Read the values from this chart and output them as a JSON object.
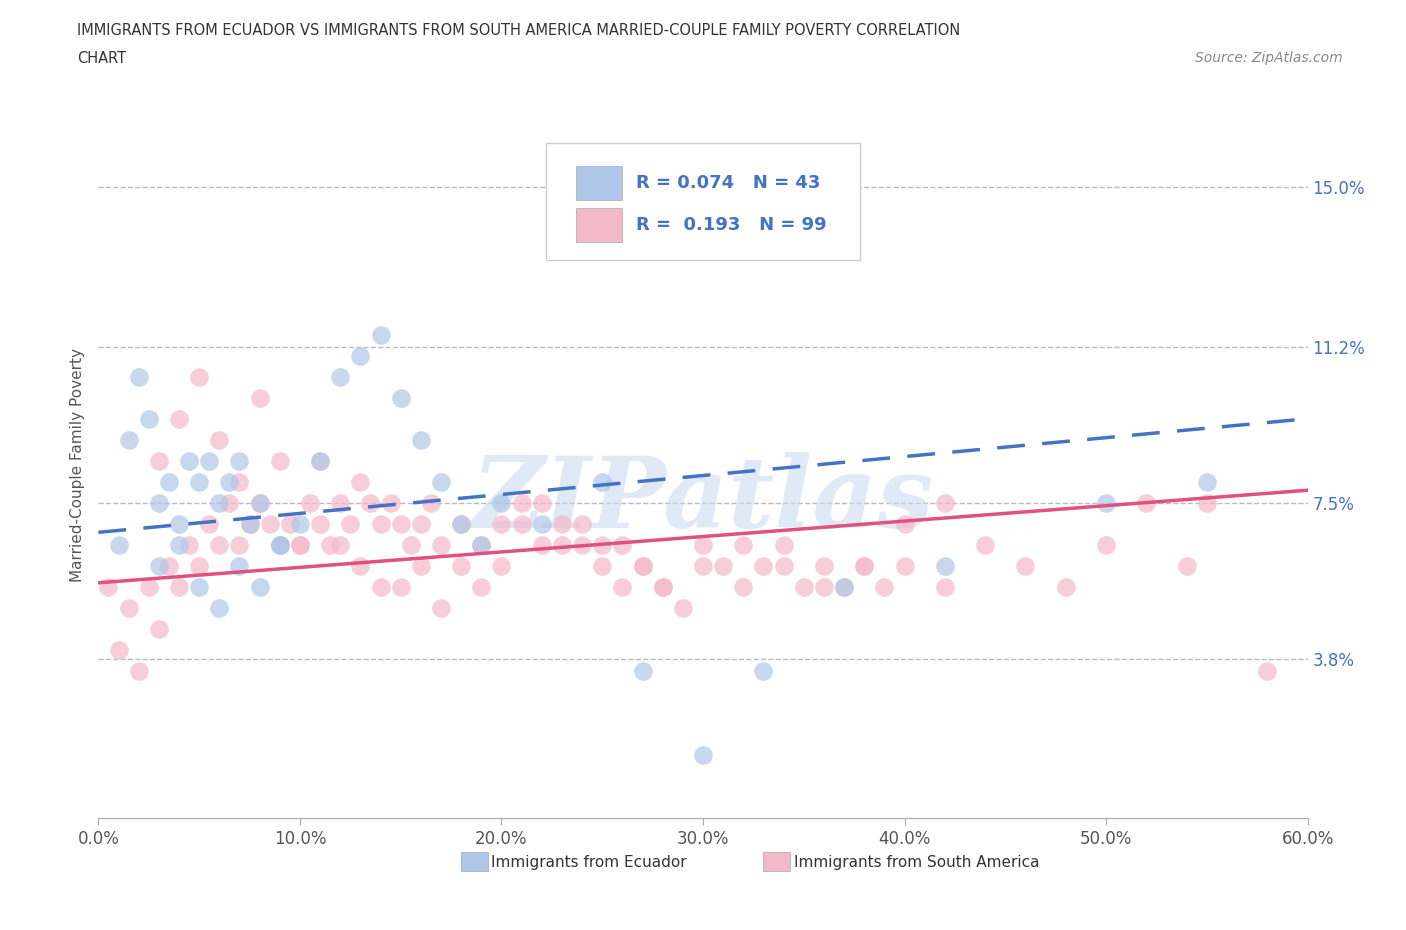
{
  "title_line1": "IMMIGRANTS FROM ECUADOR VS IMMIGRANTS FROM SOUTH AMERICA MARRIED-COUPLE FAMILY POVERTY CORRELATION",
  "title_line2": "CHART",
  "source_text": "Source: ZipAtlas.com",
  "ylabel": "Married-Couple Family Poverty",
  "xlabel_ticks": [
    "0.0%",
    "10.0%",
    "20.0%",
    "30.0%",
    "40.0%",
    "50.0%",
    "60.0%"
  ],
  "xlabel_vals": [
    0.0,
    10.0,
    20.0,
    30.0,
    40.0,
    50.0,
    60.0
  ],
  "ytick_labels": [
    "3.8%",
    "7.5%",
    "11.2%",
    "15.0%"
  ],
  "ytick_vals": [
    3.8,
    7.5,
    11.2,
    15.0
  ],
  "xmin": 0.0,
  "xmax": 60.0,
  "ymin": 0.0,
  "ymax": 16.8,
  "blue_color": "#aec6e8",
  "pink_color": "#f4b8cb",
  "blue_line_color": "#4472c4",
  "pink_line_color": "#e05080",
  "R_blue": 0.074,
  "N_blue": 43,
  "R_pink": 0.193,
  "N_pink": 99,
  "legend_R_color": "#4472c4",
  "watermark": "ZIPatlas",
  "blue_scatter_x": [
    1.0,
    1.5,
    2.0,
    2.5,
    3.0,
    3.5,
    4.0,
    4.5,
    5.0,
    5.5,
    6.0,
    6.5,
    7.0,
    7.5,
    8.0,
    9.0,
    10.0,
    11.0,
    12.0,
    13.0,
    14.0,
    15.0,
    16.0,
    17.0,
    18.0,
    19.0,
    20.0,
    22.0,
    25.0,
    27.0,
    30.0,
    33.0,
    37.0,
    42.0,
    50.0,
    55.0,
    3.0,
    4.0,
    5.0,
    6.0,
    7.0,
    8.0,
    9.0
  ],
  "blue_scatter_y": [
    6.5,
    9.0,
    10.5,
    9.5,
    7.5,
    8.0,
    7.0,
    8.5,
    8.0,
    8.5,
    7.5,
    8.0,
    8.5,
    7.0,
    7.5,
    6.5,
    7.0,
    8.5,
    10.5,
    11.0,
    11.5,
    10.0,
    9.0,
    8.0,
    7.0,
    6.5,
    7.5,
    7.0,
    8.0,
    3.5,
    1.5,
    3.5,
    5.5,
    6.0,
    7.5,
    8.0,
    6.0,
    6.5,
    5.5,
    5.0,
    6.0,
    5.5,
    6.5
  ],
  "pink_scatter_x": [
    0.5,
    1.0,
    1.5,
    2.0,
    2.5,
    3.0,
    3.5,
    4.0,
    4.5,
    5.0,
    5.5,
    6.0,
    6.5,
    7.0,
    7.5,
    8.0,
    8.5,
    9.0,
    9.5,
    10.0,
    10.5,
    11.0,
    11.5,
    12.0,
    12.5,
    13.0,
    13.5,
    14.0,
    14.5,
    15.0,
    15.5,
    16.0,
    16.5,
    17.0,
    18.0,
    19.0,
    20.0,
    21.0,
    22.0,
    23.0,
    24.0,
    25.0,
    26.0,
    27.0,
    28.0,
    30.0,
    32.0,
    34.0,
    36.0,
    38.0,
    40.0,
    42.0,
    44.0,
    46.0,
    48.0,
    50.0,
    52.0,
    54.0,
    55.0,
    58.0,
    3.0,
    4.0,
    5.0,
    6.0,
    7.0,
    8.0,
    9.0,
    10.0,
    11.0,
    12.0,
    13.0,
    14.0,
    15.0,
    16.0,
    17.0,
    18.0,
    19.0,
    20.0,
    21.0,
    22.0,
    23.0,
    24.0,
    25.0,
    26.0,
    27.0,
    28.0,
    29.0,
    30.0,
    31.0,
    32.0,
    33.0,
    34.0,
    35.0,
    36.0,
    37.0,
    38.0,
    39.0,
    40.0,
    42.0
  ],
  "pink_scatter_y": [
    5.5,
    4.0,
    5.0,
    3.5,
    5.5,
    4.5,
    6.0,
    5.5,
    6.5,
    6.0,
    7.0,
    6.5,
    7.5,
    6.5,
    7.0,
    7.5,
    7.0,
    6.5,
    7.0,
    6.5,
    7.5,
    7.0,
    6.5,
    7.5,
    7.0,
    8.0,
    7.5,
    7.0,
    7.5,
    7.0,
    6.5,
    7.0,
    7.5,
    6.5,
    7.0,
    6.5,
    7.0,
    7.5,
    6.5,
    7.0,
    6.5,
    6.0,
    6.5,
    6.0,
    5.5,
    6.0,
    6.5,
    6.0,
    5.5,
    6.0,
    7.0,
    7.5,
    6.5,
    6.0,
    5.5,
    6.5,
    7.5,
    6.0,
    7.5,
    3.5,
    8.5,
    9.5,
    10.5,
    9.0,
    8.0,
    10.0,
    8.5,
    6.5,
    8.5,
    6.5,
    6.0,
    5.5,
    5.5,
    6.0,
    5.0,
    6.0,
    5.5,
    6.0,
    7.0,
    7.5,
    6.5,
    7.0,
    6.5,
    5.5,
    6.0,
    5.5,
    5.0,
    6.5,
    6.0,
    5.5,
    6.0,
    6.5,
    5.5,
    6.0,
    5.5,
    6.0,
    5.5,
    6.0,
    5.5
  ],
  "blue_line_x0": 0.0,
  "blue_line_x1": 60.0,
  "blue_line_y0": 6.8,
  "blue_line_y1": 9.5,
  "pink_line_x0": 0.0,
  "pink_line_x1": 60.0,
  "pink_line_y0": 5.6,
  "pink_line_y1": 7.8
}
